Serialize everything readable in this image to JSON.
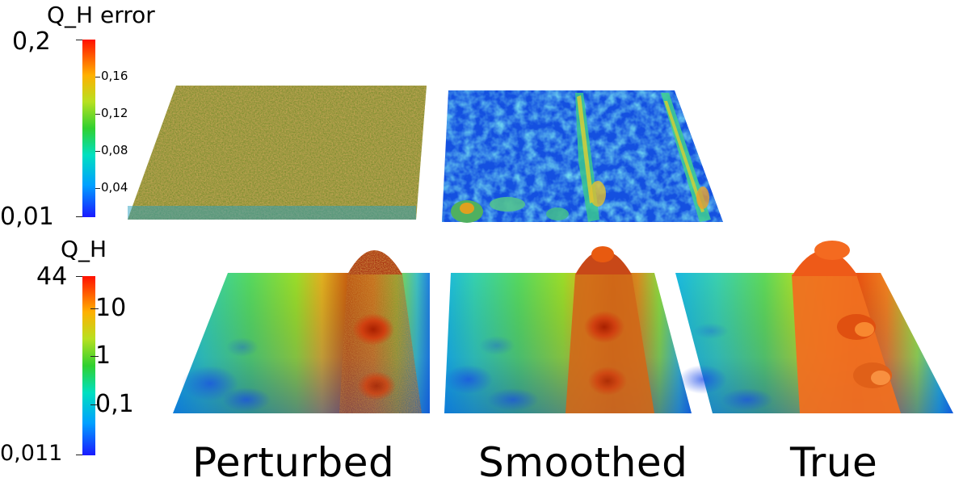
{
  "error_colorbar": {
    "title": "Q_H error",
    "max_label": "0,2",
    "min_label": "0,01",
    "tick_labels": [
      "0,16",
      "0,12",
      "0,08",
      "0,04"
    ]
  },
  "value_colorbar": {
    "title": "Q_H",
    "max_label": "44",
    "min_label": "0,011",
    "tick_labels": [
      "10",
      "1",
      "0,1"
    ]
  },
  "captions": {
    "perturbed": "Perturbed",
    "smoothed": "Smoothed",
    "true": "True"
  }
}
